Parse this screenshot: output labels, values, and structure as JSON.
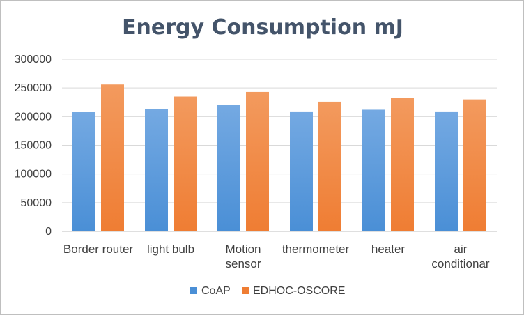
{
  "chart_data": {
    "type": "bar",
    "title": "Energy Consumption mJ",
    "xlabel": "",
    "ylabel": "",
    "categories": [
      "Border router",
      "light bulb",
      "Motion sensor",
      "thermometer",
      "heater",
      "air conditionar"
    ],
    "category_lines": [
      [
        "Border router"
      ],
      [
        "light bulb"
      ],
      [
        "Motion",
        "sensor"
      ],
      [
        "thermometer"
      ],
      [
        "heater"
      ],
      [
        "air",
        "conditionar"
      ]
    ],
    "series": [
      {
        "name": "CoAP",
        "values": [
          208000,
          213000,
          220000,
          209000,
          212000,
          209000
        ]
      },
      {
        "name": "EDHOC-OSCORE",
        "values": [
          256000,
          235000,
          243000,
          226000,
          232000,
          230000
        ]
      }
    ],
    "ylim": [
      0,
      300000
    ],
    "yticks": [
      0,
      50000,
      100000,
      150000,
      200000,
      250000,
      300000
    ],
    "grid": true,
    "legend_position": "bottom",
    "colors": {
      "series": [
        "#4a8fd6",
        "#ef7d33"
      ],
      "gradient_light": [
        "#74a9e2",
        "#f39a5e"
      ],
      "grid": "#d9d9d9",
      "axis": "#bfbfbf"
    }
  }
}
